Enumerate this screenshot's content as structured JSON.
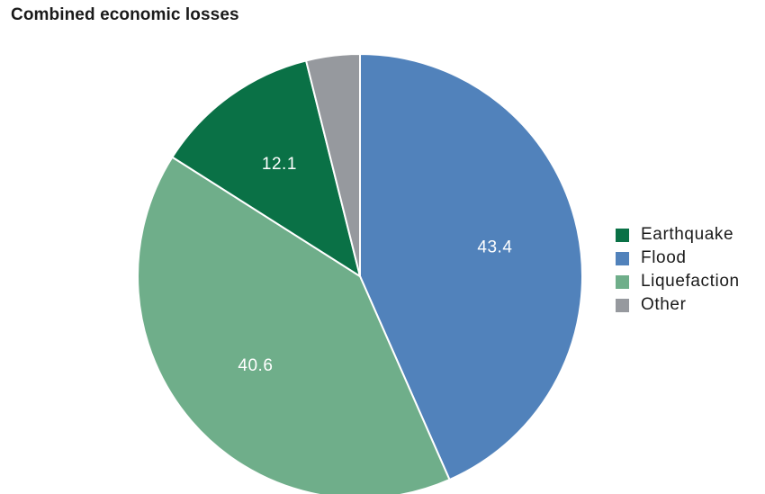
{
  "chart_data": {
    "type": "pie",
    "title": "Combined economic losses",
    "slices": [
      {
        "name": "Flood",
        "value": 43.4,
        "label": "43.4",
        "color": "#5182bb"
      },
      {
        "name": "Liquefaction",
        "value": 40.6,
        "label": "40.6",
        "color": "#6fae8a"
      },
      {
        "name": "Earthquake",
        "value": 12.1,
        "label": "12.1",
        "color": "#0a7146"
      },
      {
        "name": "Other",
        "value": 3.9,
        "label": "",
        "color": "#96999e"
      }
    ],
    "legend": {
      "placement": "right",
      "items": [
        {
          "name": "Earthquake",
          "color": "#0a7146"
        },
        {
          "name": "Flood",
          "color": "#5182bb"
        },
        {
          "name": "Liquefaction",
          "color": "#6fae8a"
        },
        {
          "name": "Other",
          "color": "#96999e"
        }
      ]
    }
  }
}
